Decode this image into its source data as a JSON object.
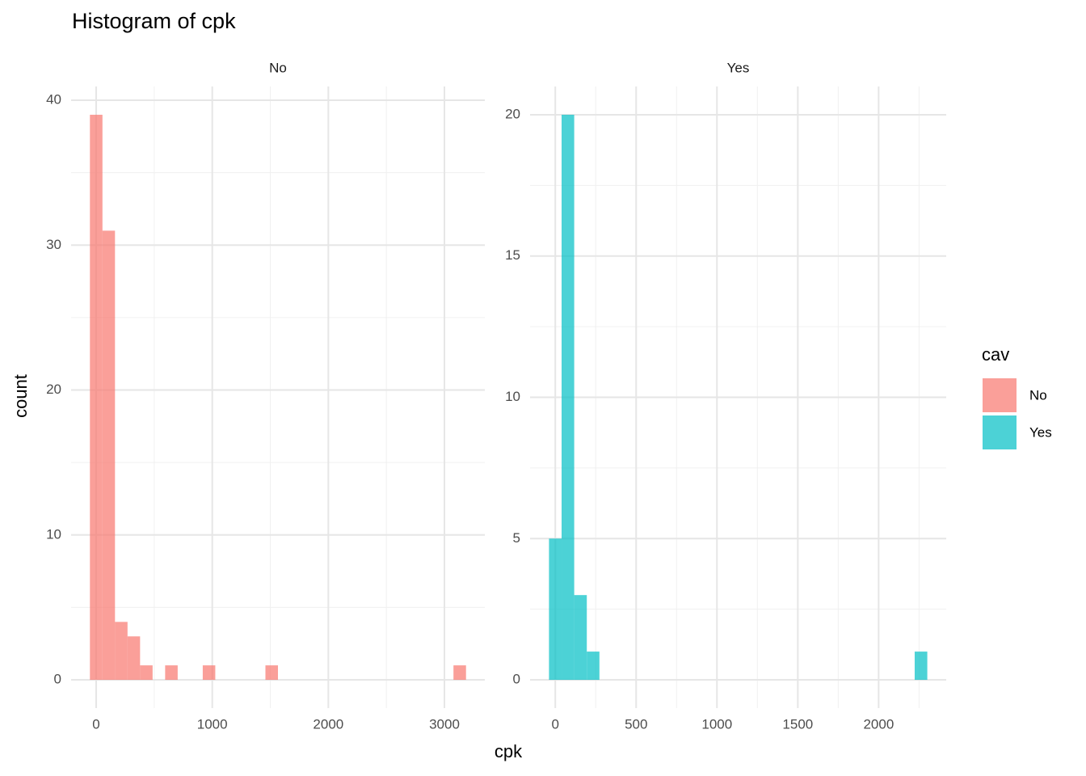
{
  "title": "Histogram of cpk",
  "x_label": "cpk",
  "y_label": "count",
  "legend_title": "cav",
  "chart_data": [
    {
      "type": "histogram",
      "bins": [
        -54,
        54,
        162,
        270,
        378,
        486,
        594,
        702,
        810,
        918,
        1026,
        1134,
        1242,
        1350,
        1458,
        1566,
        1674,
        1782,
        1890,
        1998,
        2106,
        2214,
        2322,
        2430,
        2538,
        2646,
        2754,
        2862,
        2970,
        3078,
        3186
      ],
      "series": [
        {
          "name": "No",
          "color": "#F8766D",
          "values": [
            39,
            31,
            4,
            3,
            1,
            0,
            1,
            0,
            0,
            1,
            0,
            0,
            0,
            0,
            1,
            0,
            0,
            0,
            0,
            0,
            0,
            0,
            0,
            0,
            0,
            0,
            0,
            0,
            0,
            1
          ]
        }
      ],
      "xlim": [
        -216,
        3348
      ],
      "ylim": [
        -1.95,
        40.95
      ],
      "xticks": [
        0,
        1000,
        2000,
        3000
      ],
      "yticks": [
        0,
        10,
        20,
        30,
        40
      ],
      "grid": true,
      "alpha": 0.7
    },
    {
      "type": "histogram",
      "bins": [
        -39,
        39,
        117,
        195,
        273,
        351,
        429,
        507,
        585,
        663,
        741,
        819,
        897,
        975,
        1053,
        1131,
        1209,
        1287,
        1365,
        1443,
        1521,
        1599,
        1677,
        1755,
        1833,
        1911,
        1989,
        2067,
        2145,
        2223,
        2301
      ],
      "series": [
        {
          "name": "Yes",
          "color": "#00BFC4",
          "values": [
            5,
            20,
            3,
            1,
            0,
            0,
            0,
            0,
            0,
            0,
            0,
            0,
            0,
            0,
            0,
            0,
            0,
            0,
            0,
            0,
            0,
            0,
            0,
            0,
            0,
            0,
            0,
            0,
            0,
            1
          ]
        }
      ],
      "xlim": [
        -156,
        2418
      ],
      "ylim": [
        -1,
        21
      ],
      "xticks": [
        0,
        500,
        1000,
        1500,
        2000
      ],
      "yticks": [
        0,
        5,
        10,
        15,
        20
      ],
      "grid": true,
      "alpha": 0.7
    }
  ]
}
